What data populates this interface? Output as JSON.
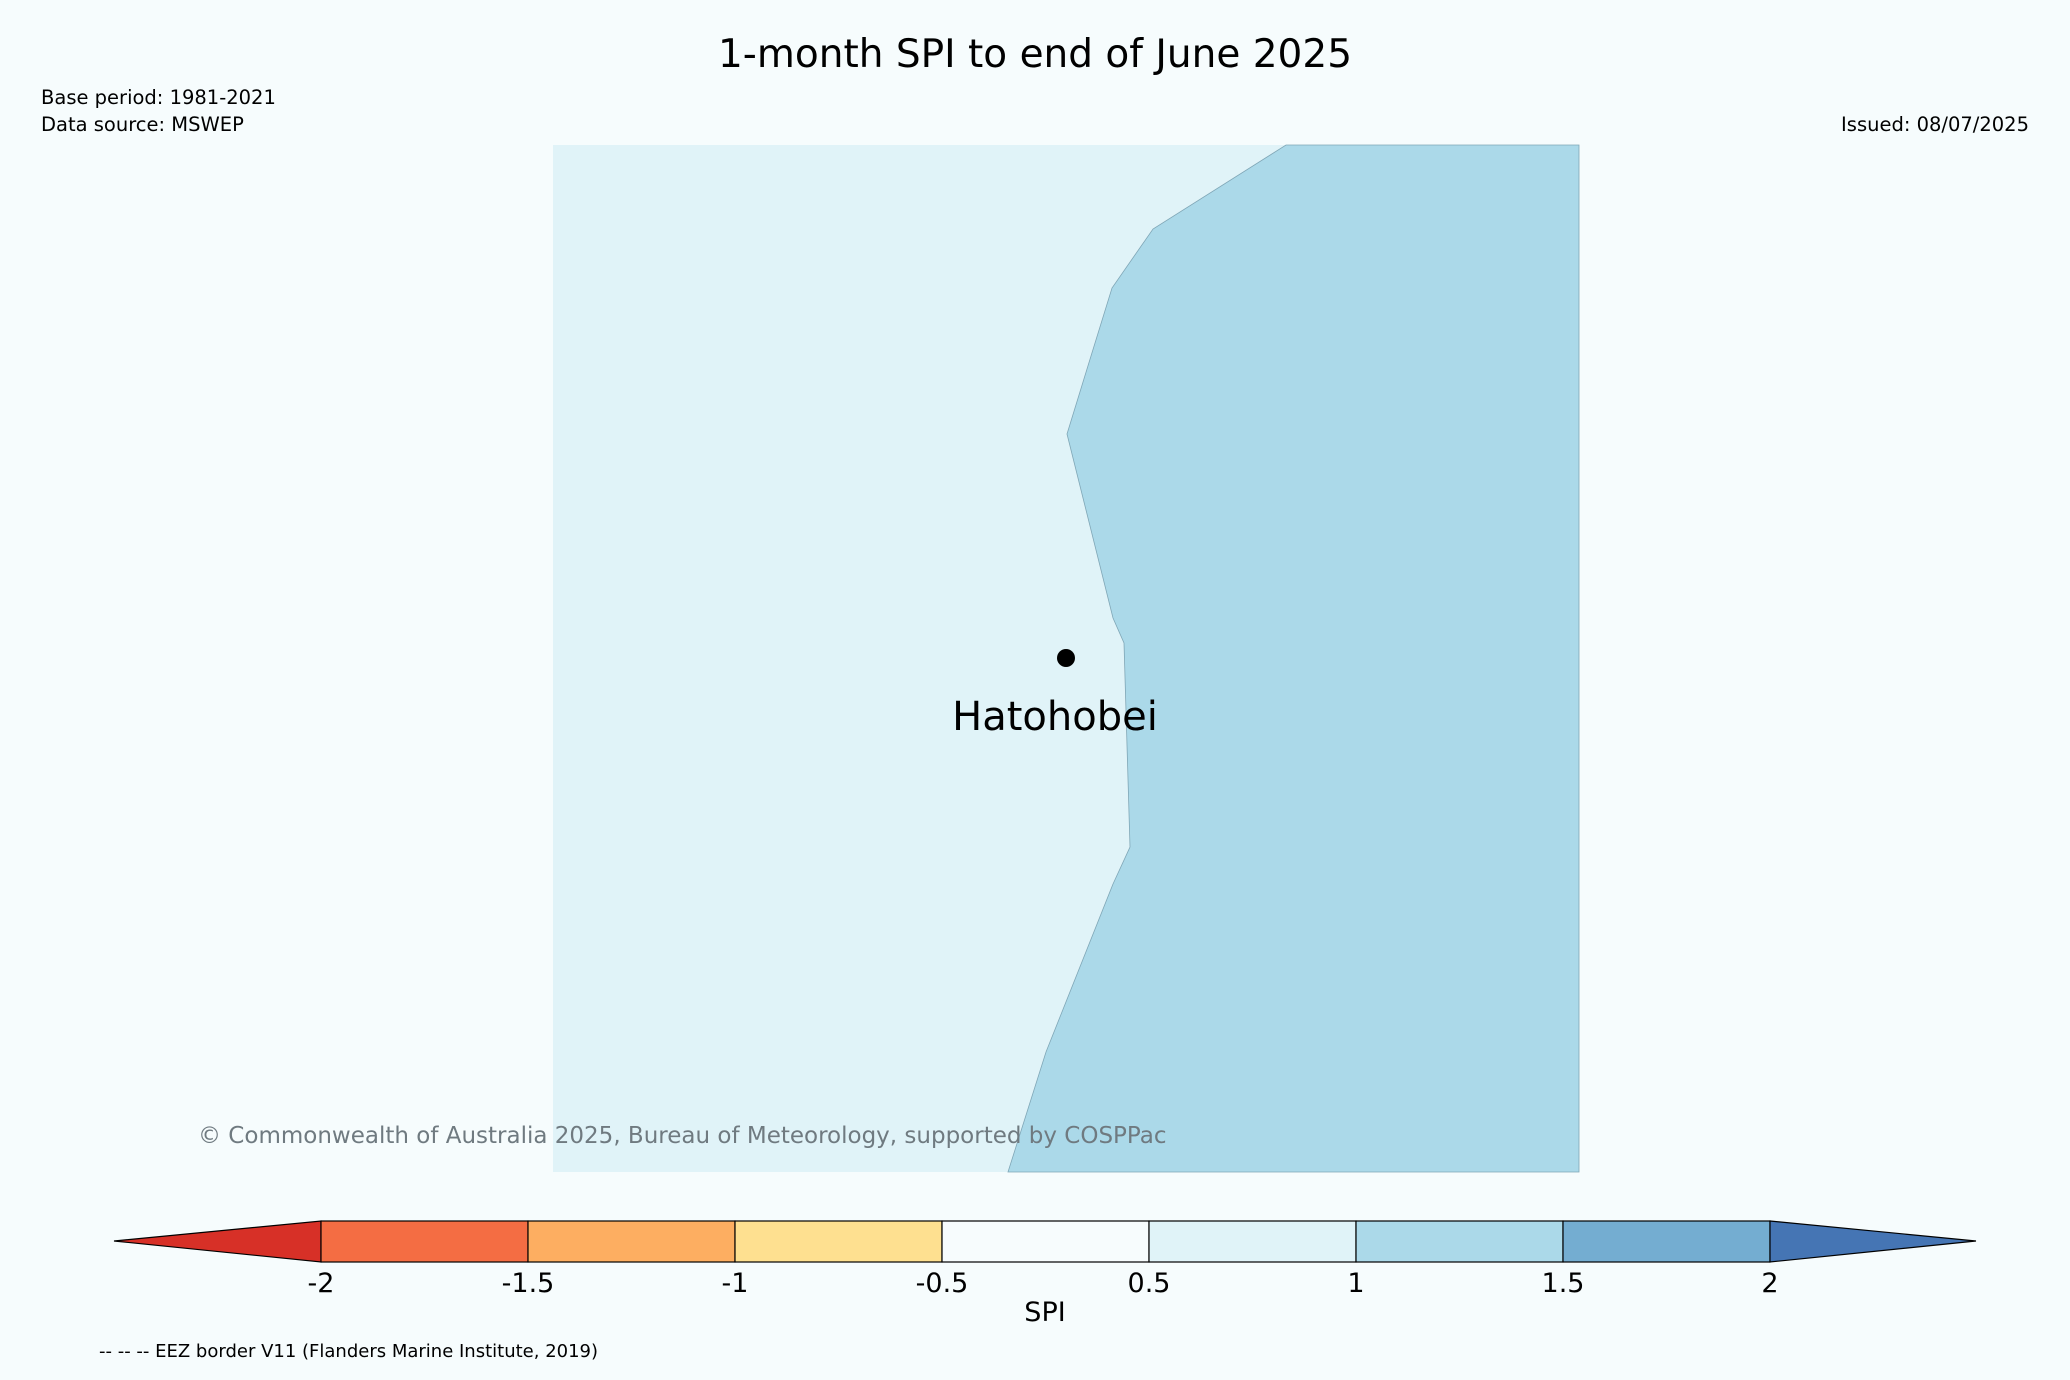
{
  "title": "1-month SPI to end of June 2025",
  "meta": {
    "base_period": "Base period: 1981-2021",
    "data_source": "Data source: MSWEP",
    "issued": "Issued: 08/07/2025"
  },
  "map": {
    "place_label": "Hatohobei",
    "regions": [
      {
        "class": "0.5 to 1",
        "color": "#e0f3f8"
      },
      {
        "class": "1 to 1.5",
        "color": "#abd9e9"
      }
    ]
  },
  "copyright": "© Commonwealth of Australia 2025, Bureau of Meteorology, supported by COSPPac",
  "colorbar": {
    "title": "SPI",
    "ticks": [
      "-2",
      "-1.5",
      "-1",
      "-0.5",
      "0.5",
      "1",
      "1.5",
      "2"
    ],
    "colors": [
      "#d73027",
      "#f46d43",
      "#fdae61",
      "#fee090",
      "#f7fcfd",
      "#e0f3f8",
      "#abd9e9",
      "#74add1",
      "#4575b4"
    ]
  },
  "footnote": "-- -- -- EEZ border V11 (Flanders Marine Institute, 2019)"
}
